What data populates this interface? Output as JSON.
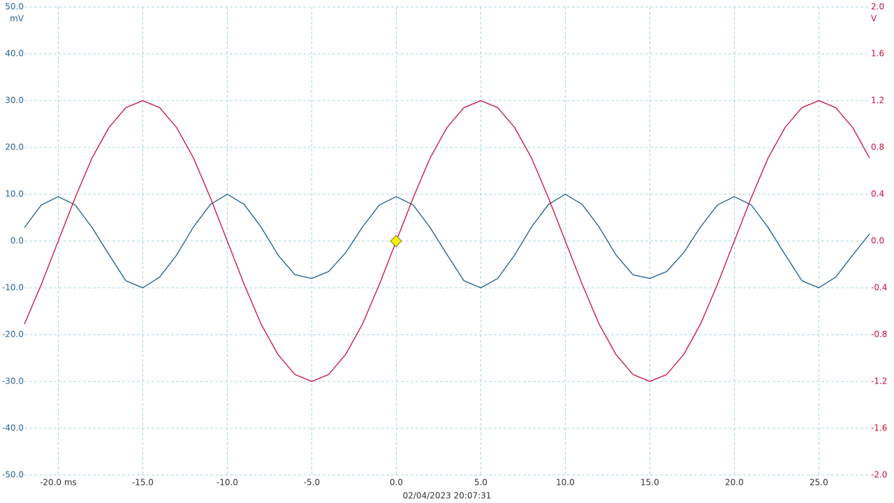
{
  "chart_data": {
    "type": "line",
    "y_unit": "mV",
    "y2_unit": "V",
    "footer": "02/04/2023 20:07:31",
    "grid": true,
    "xlim": [
      -22,
      28
    ],
    "xticks": [
      {
        "value": -20,
        "label": "-20.0 ms"
      },
      {
        "value": -15,
        "label": "-15.0"
      },
      {
        "value": -10,
        "label": "-10.0"
      },
      {
        "value": -5,
        "label": "-5.0"
      },
      {
        "value": 0,
        "label": "0.0"
      },
      {
        "value": 5,
        "label": "5.0"
      },
      {
        "value": 10,
        "label": "10.0"
      },
      {
        "value": 15,
        "label": "15.0"
      },
      {
        "value": 20,
        "label": "20.0"
      },
      {
        "value": 25,
        "label": "25.0"
      }
    ],
    "ylim": [
      -50,
      50
    ],
    "yticks": [
      {
        "value": 50,
        "label": "50.0"
      },
      {
        "value": 40,
        "label": "40.0"
      },
      {
        "value": 30,
        "label": "30.0"
      },
      {
        "value": 20,
        "label": "20.0"
      },
      {
        "value": 10,
        "label": "10.0"
      },
      {
        "value": 0,
        "label": "0.0"
      },
      {
        "value": -10,
        "label": "-10.0"
      },
      {
        "value": -20,
        "label": "-20.0"
      },
      {
        "value": -30,
        "label": "-30.0"
      },
      {
        "value": -40,
        "label": "-40.0"
      },
      {
        "value": -50,
        "label": "-50.0"
      }
    ],
    "y2lim": [
      -2,
      2
    ],
    "y2ticks": [
      {
        "value": 2,
        "label": "2.0"
      },
      1.6,
      1.2,
      0.8,
      0.4,
      {
        "value": 0,
        "label": "0.0"
      },
      -0.4,
      -0.8,
      -1.2,
      -1.6,
      {
        "value": -2,
        "label": "-2.0"
      }
    ],
    "x": [
      -22,
      -21,
      -20,
      -19,
      -18,
      -17,
      -16,
      -15,
      -14,
      -13,
      -12,
      -11,
      -10,
      -9,
      -8,
      -7,
      -6,
      -5,
      -4,
      -3,
      -2,
      -1,
      0,
      1,
      2,
      3,
      4,
      5,
      6,
      7,
      8,
      9,
      10,
      11,
      12,
      13,
      14,
      15,
      16,
      17,
      18,
      19,
      20,
      21,
      22,
      23,
      24,
      25,
      26,
      27,
      28
    ],
    "series": [
      {
        "color": "#1d5c8a",
        "values": [
          2.9,
          7.7,
          9.5,
          7.7,
          2.9,
          -2.9,
          -8.5,
          -10,
          -7.7,
          -3,
          3,
          7.8,
          10,
          7.8,
          3,
          -3,
          -7.2,
          -8,
          -6.5,
          -2.5,
          3,
          7.7,
          9.5,
          7.7,
          2.9,
          -2.9,
          -8.5,
          -10,
          -8,
          -3,
          3,
          7.8,
          10,
          7.8,
          3,
          -3,
          -7.2,
          -8,
          -6.5,
          -2.5,
          3,
          7.7,
          9.5,
          7.7,
          2.9,
          -2.9,
          -8.5,
          -10,
          -7.7,
          -3,
          1.5
        ]
      },
      {
        "color": "#c8103c",
        "axis": "y2",
        "values": [
          -0.71,
          -0.37,
          0,
          0.37,
          0.71,
          0.97,
          1.14,
          1.2,
          1.14,
          0.97,
          0.71,
          0.37,
          0,
          -0.37,
          -0.71,
          -0.97,
          -1.14,
          -1.2,
          -1.14,
          -0.97,
          -0.71,
          -0.37,
          0,
          0.37,
          0.71,
          0.97,
          1.14,
          1.2,
          1.14,
          0.97,
          0.71,
          0.37,
          0,
          -0.37,
          -0.71,
          -0.97,
          -1.14,
          -1.2,
          -1.14,
          -0.97,
          -0.71,
          -0.37,
          0,
          0.37,
          0.71,
          0.97,
          1.14,
          1.2,
          1.14,
          0.97,
          0.71
        ]
      }
    ]
  }
}
